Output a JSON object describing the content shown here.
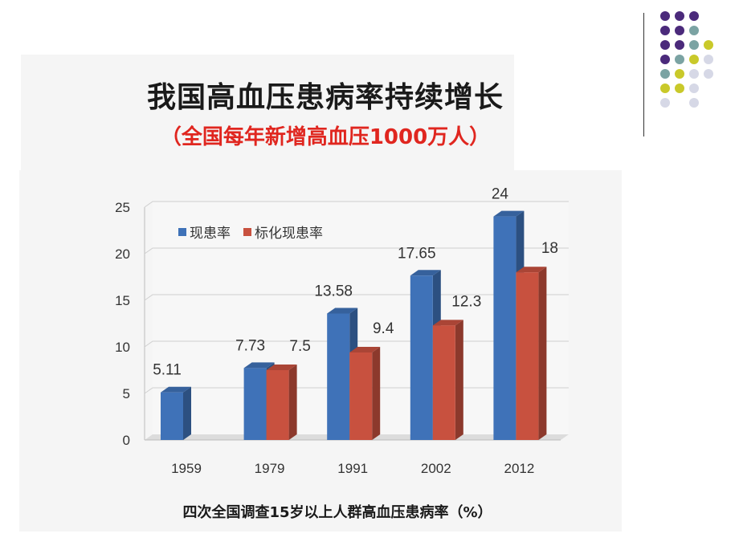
{
  "page": {
    "title": "我国高血压患病率持续增长",
    "subtitle": "（全国每年新增高血压1000万人）",
    "caption": "四次全国调查15岁以上人群高血压患病率（%）"
  },
  "chart_data": {
    "type": "bar",
    "categories": [
      "1959",
      "1979",
      "1991",
      "2002",
      "2012"
    ],
    "series": [
      {
        "name": "现患率",
        "values": [
          5.11,
          7.73,
          13.58,
          17.65,
          24
        ],
        "labels": [
          "5.11",
          "7.73",
          "13.58",
          "17.65",
          "24"
        ],
        "color": "#3f72b8"
      },
      {
        "name": "标化现患率",
        "values": [
          null,
          7.5,
          9.4,
          12.3,
          18
        ],
        "labels": [
          "",
          "7.5",
          "9.4",
          "12.3",
          "18"
        ],
        "color": "#c8513f"
      }
    ],
    "ylim": [
      0,
      25
    ],
    "yticks": [
      0,
      5,
      10,
      15,
      20,
      25
    ],
    "grid": true,
    "legend": "top-left",
    "style": "3d"
  },
  "decoration": {
    "dot_colors": [
      "#4b2a7b",
      "#7ba3a3",
      "#c9c92a",
      "#d6d8e6"
    ]
  }
}
